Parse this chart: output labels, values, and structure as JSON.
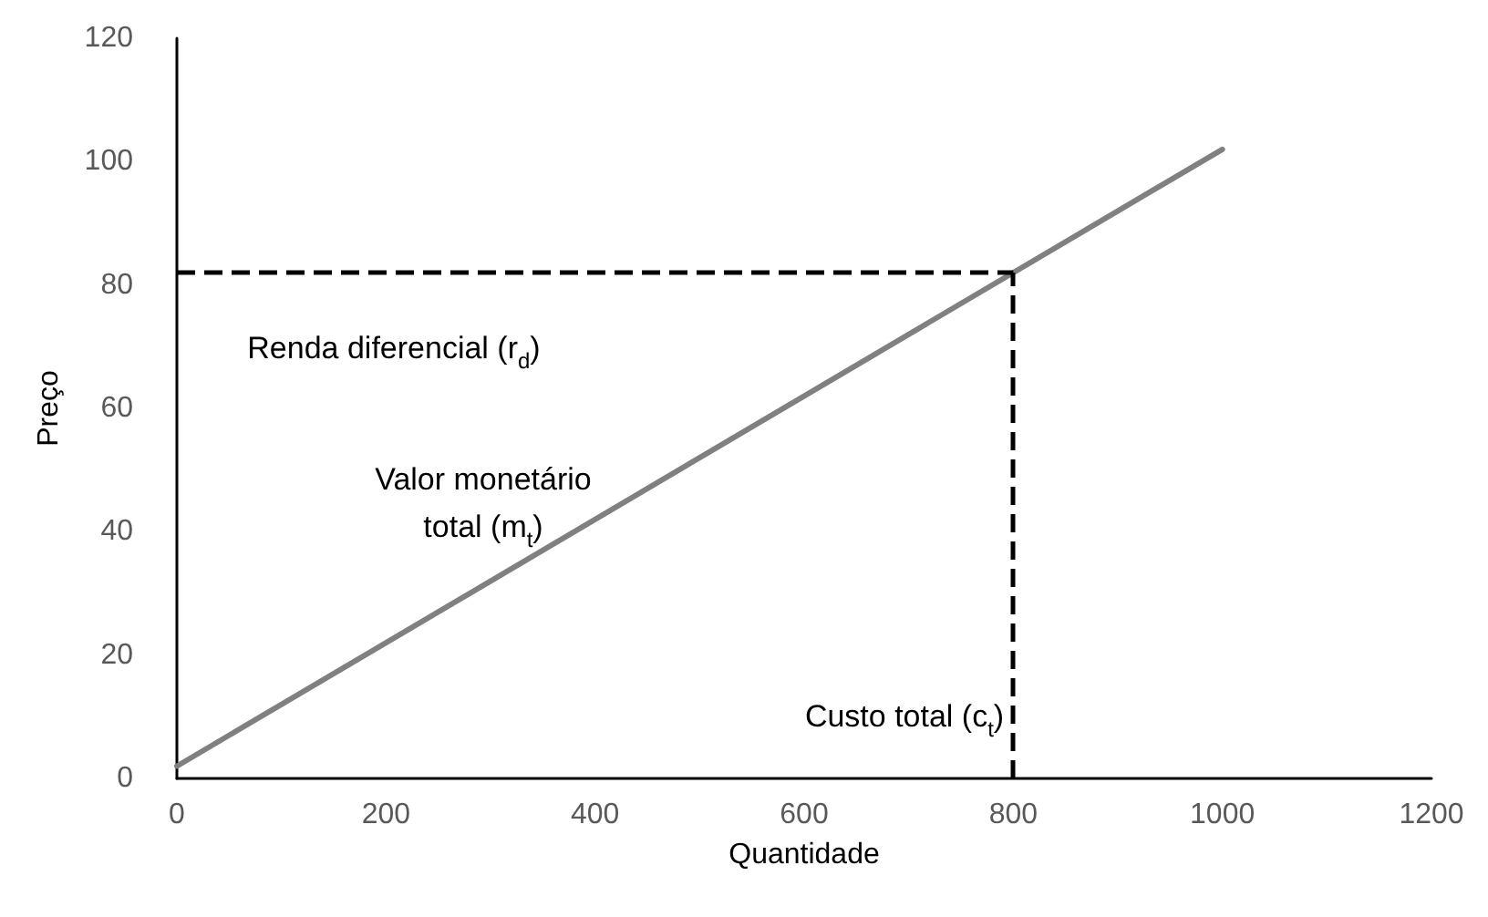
{
  "chart_data": {
    "type": "line",
    "xlabel": "Quantidade",
    "ylabel": "Preço",
    "x": [
      0,
      1000
    ],
    "series": [
      {
        "color": "#808080",
        "values": [
          2,
          102
        ]
      }
    ],
    "xlim": [
      0,
      1200
    ],
    "xticks": [
      0,
      200,
      400,
      600,
      800,
      1000,
      1200
    ],
    "ylim": [
      0,
      120
    ],
    "yticks": [
      0,
      20,
      40,
      60,
      80,
      100,
      120
    ],
    "grid": false,
    "marker": "none",
    "line_style": "solid",
    "ref_lines": [
      {
        "axis": "y",
        "value": 82,
        "color": "#000000",
        "line_style": "dashed"
      },
      {
        "axis": "x",
        "value": 800,
        "color": "#000000",
        "line_style": "dashed"
      }
    ],
    "annotations": [
      "Renda diferencial (r$_{d}$)",
      "Valor monetário\ntotal (m$_{t}$)",
      "Custo total (c$_{t}$)"
    ]
  }
}
